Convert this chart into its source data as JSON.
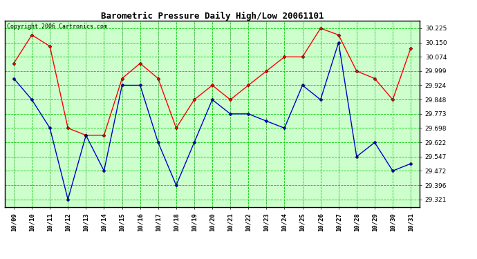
{
  "title": "Barometric Pressure Daily High/Low 20061101",
  "copyright": "Copyright 2006 Cartronics.com",
  "dates": [
    "10/09",
    "10/10",
    "10/11",
    "10/12",
    "10/13",
    "10/14",
    "10/15",
    "10/16",
    "10/17",
    "10/18",
    "10/19",
    "10/20",
    "10/21",
    "10/22",
    "10/23",
    "10/24",
    "10/25",
    "10/26",
    "10/27",
    "10/28",
    "10/29",
    "10/30",
    "10/31"
  ],
  "high": [
    30.04,
    30.19,
    30.13,
    29.698,
    29.66,
    29.66,
    29.96,
    30.04,
    29.96,
    29.698,
    29.848,
    29.924,
    29.848,
    29.924,
    29.999,
    30.074,
    30.074,
    30.225,
    30.19,
    29.999,
    29.96,
    29.848,
    30.12
  ],
  "low": [
    29.96,
    29.848,
    29.698,
    29.321,
    29.66,
    29.472,
    29.924,
    29.924,
    29.622,
    29.396,
    29.622,
    29.848,
    29.773,
    29.773,
    29.735,
    29.698,
    29.924,
    29.848,
    30.15,
    29.547,
    29.622,
    29.472,
    29.51
  ],
  "y_ticks": [
    29.321,
    29.396,
    29.472,
    29.547,
    29.622,
    29.698,
    29.773,
    29.848,
    29.924,
    29.999,
    30.074,
    30.15,
    30.225
  ],
  "y_min": 29.28,
  "y_max": 30.265,
  "high_color": "#ff0000",
  "low_color": "#0000cc",
  "marker": "D",
  "marker_size": 2.5,
  "bg_color": "#ffffff",
  "plot_bg_color": "#ccffcc",
  "grid_color": "#00cc00",
  "title_fontsize": 9,
  "copyright_fontsize": 6,
  "tick_fontsize": 6.5
}
